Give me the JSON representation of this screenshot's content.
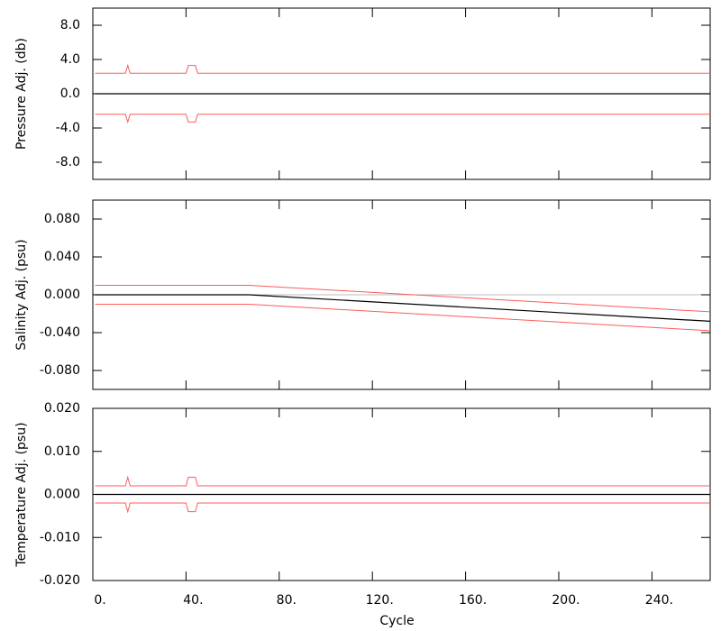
{
  "chart_data": [
    {
      "type": "line",
      "ylabel": "Pressure Adj. (db)",
      "xlim": [
        0,
        265
      ],
      "ylim": [
        -10,
        10
      ],
      "yticks": [
        {
          "value": -8,
          "label": "-8.0"
        },
        {
          "value": -4,
          "label": "-4.0"
        },
        {
          "value": 0,
          "label": "0.0"
        },
        {
          "value": 4,
          "label": "4.0"
        },
        {
          "value": 8,
          "label": "8.0"
        }
      ],
      "x": [
        1,
        14,
        15,
        16,
        40,
        41,
        44,
        45,
        265
      ],
      "series": [
        {
          "color": "#ff5a5a",
          "values": [
            2.4,
            2.4,
            3.3,
            2.4,
            2.4,
            3.3,
            3.3,
            2.4,
            2.4
          ]
        },
        {
          "color": "#ff5a5a",
          "values": [
            -2.4,
            -2.4,
            -3.3,
            -2.4,
            -2.4,
            -3.3,
            -3.3,
            -2.4,
            -2.4
          ]
        },
        {
          "color": "#000000",
          "values": [
            0,
            0,
            0,
            0,
            0,
            0,
            0,
            0,
            0
          ]
        }
      ]
    },
    {
      "type": "line",
      "ylabel": "Salinity Adj. (psu)",
      "xlim": [
        0,
        265
      ],
      "ylim": [
        -0.1,
        0.1
      ],
      "yticks": [
        {
          "value": -0.08,
          "label": "-0.080"
        },
        {
          "value": -0.04,
          "label": "-0.040"
        },
        {
          "value": 0,
          "label": "0.000"
        },
        {
          "value": 0.04,
          "label": "0.040"
        },
        {
          "value": 0.08,
          "label": "0.080"
        }
      ],
      "x": [
        1,
        67,
        265
      ],
      "series": [
        {
          "color": "#ff5a5a",
          "values": [
            0.01,
            0.01,
            -0.018
          ]
        },
        {
          "color": "#ff5a5a",
          "values": [
            -0.01,
            -0.01,
            -0.038
          ]
        },
        {
          "color": "#000000",
          "values": [
            0,
            0,
            -0.028
          ]
        }
      ]
    },
    {
      "type": "line",
      "ylabel": "Temperature Adj. (psu)",
      "xlabel": "Cycle",
      "xlim": [
        0,
        265
      ],
      "ylim": [
        -0.02,
        0.02
      ],
      "yticks": [
        {
          "value": -0.02,
          "label": "-0.020"
        },
        {
          "value": -0.01,
          "label": "-0.010"
        },
        {
          "value": 0,
          "label": "0.000"
        },
        {
          "value": 0.01,
          "label": "0.010"
        },
        {
          "value": 0.02,
          "label": "0.020"
        }
      ],
      "xticks": [
        {
          "value": 0,
          "label": "0."
        },
        {
          "value": 40,
          "label": "40."
        },
        {
          "value": 80,
          "label": "80."
        },
        {
          "value": 120,
          "label": "120."
        },
        {
          "value": 160,
          "label": "160."
        },
        {
          "value": 200,
          "label": "200."
        },
        {
          "value": 240,
          "label": "240."
        }
      ],
      "x": [
        1,
        14,
        15,
        16,
        40,
        41,
        44,
        45,
        265
      ],
      "series": [
        {
          "color": "#ff5a5a",
          "values": [
            0.002,
            0.002,
            0.004,
            0.002,
            0.002,
            0.004,
            0.004,
            0.002,
            0.002
          ]
        },
        {
          "color": "#ff5a5a",
          "values": [
            -0.002,
            -0.002,
            -0.004,
            -0.002,
            -0.002,
            -0.004,
            -0.004,
            -0.002,
            -0.002
          ]
        },
        {
          "color": "#000000",
          "values": [
            0,
            0,
            0,
            0,
            0,
            0,
            0,
            0,
            0
          ]
        }
      ]
    }
  ]
}
